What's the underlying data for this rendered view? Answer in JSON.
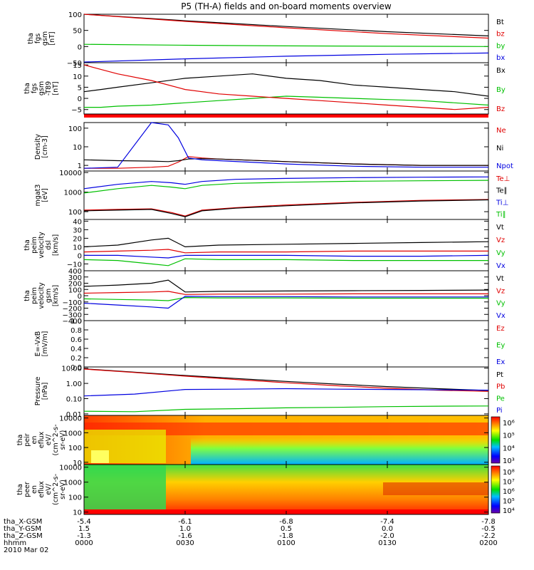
{
  "title": "P5 (TH-A) fields and on-board moments overview",
  "colors": {
    "black": "#000000",
    "red": "#e00000",
    "green": "#00c000",
    "blue": "#0000e0",
    "gray": "#d0d0d0"
  },
  "chart_data": [
    {
      "id": "fgs",
      "type": "line",
      "ylabel_lines": [
        "tha",
        "fgs",
        "gsm",
        "[nT]"
      ],
      "ylim": [
        -50,
        100
      ],
      "ticks": [
        {
          "v": 100,
          "label": "100"
        },
        {
          "v": 50,
          "label": "50"
        },
        {
          "v": 0,
          "label": "0"
        },
        {
          "v": -50,
          "label": "−50"
        }
      ],
      "x": [
        0,
        30,
        60,
        90,
        120
      ],
      "series": [
        {
          "name": "Bt",
          "color": "#000000",
          "values": [
            102,
            80,
            62,
            46,
            33
          ]
        },
        {
          "name": "bz",
          "color": "#e00000",
          "values": [
            102,
            78,
            58,
            40,
            26
          ]
        },
        {
          "name": "by",
          "color": "#00c000",
          "values": [
            7,
            4,
            2,
            1,
            0
          ]
        },
        {
          "name": "bx",
          "color": "#0000e0",
          "values": [
            -48,
            -38,
            -30,
            -24,
            -20
          ]
        }
      ]
    },
    {
      "id": "fgs_dsl",
      "type": "line",
      "ylabel_lines": [
        "tha",
        "fgs",
        "gsm",
        "-T89",
        "[nT]"
      ],
      "ylim": [
        -7,
        16
      ],
      "ticks": [
        {
          "v": 15,
          "label": "15"
        },
        {
          "v": 10,
          "label": "10"
        },
        {
          "v": 5,
          "label": "5"
        },
        {
          "v": 0,
          "label": "0"
        },
        {
          "v": -5,
          "label": "−5"
        }
      ],
      "x": [
        0,
        5,
        10,
        20,
        30,
        40,
        50,
        60,
        70,
        80,
        90,
        100,
        110,
        120
      ],
      "series": [
        {
          "name": "Bx",
          "color": "#000000",
          "values": [
            3,
            4,
            5,
            7,
            9,
            10,
            11,
            9,
            8,
            6,
            5,
            4,
            3,
            1
          ]
        },
        {
          "name": "By",
          "color": "#00c000",
          "values": [
            -4,
            -4,
            -3.5,
            -3,
            -2,
            -1,
            0,
            1,
            0.5,
            0,
            -0.5,
            -1,
            -2,
            -3
          ]
        },
        {
          "name": "Bz",
          "color": "#e00000",
          "values": [
            15,
            13,
            11,
            8,
            4,
            2,
            1,
            0,
            -1,
            -2,
            -3,
            -4,
            -5,
            -4
          ]
        }
      ]
    },
    {
      "id": "density",
      "type": "line",
      "yscale": "log",
      "ylabel_lines": [
        "Density",
        "[cm-3]"
      ],
      "ylim": [
        0.5,
        200
      ],
      "ticks": [
        {
          "v": 100,
          "label": "100"
        },
        {
          "v": 10,
          "label": "10"
        },
        {
          "v": 1,
          "label": "1"
        }
      ],
      "x": [
        0,
        10,
        20,
        25,
        28,
        31,
        35,
        40,
        60,
        80,
        100,
        120
      ],
      "series": [
        {
          "name": "Ne",
          "color": "#e00000",
          "values": [
            0.7,
            0.7,
            0.8,
            0.9,
            1.5,
            3,
            2.5,
            2.2,
            1.6,
            1.2,
            1.0,
            1.0
          ]
        },
        {
          "name": "Ni",
          "color": "#000000",
          "values": [
            2,
            1.8,
            1.7,
            1.6,
            1.8,
            2.2,
            2.3,
            2.2,
            1.6,
            1.2,
            1.0,
            1.0
          ]
        },
        {
          "name": "Npot",
          "color": "#0000e0",
          "values": [
            0.7,
            0.8,
            200,
            150,
            30,
            2.5,
            2.0,
            1.8,
            1.2,
            0.9,
            0.8,
            0.8
          ]
        }
      ]
    },
    {
      "id": "temp",
      "type": "line",
      "yscale": "log",
      "ylabel_lines": [
        "mgat3",
        "[eV]"
      ],
      "ylim": [
        40,
        12000
      ],
      "ticks": [
        {
          "v": 10000,
          "label": "10000"
        },
        {
          "v": 1000,
          "label": "1000"
        },
        {
          "v": 100,
          "label": "100"
        }
      ],
      "x": [
        0,
        10,
        20,
        26,
        30,
        35,
        45,
        60,
        80,
        100,
        120
      ],
      "series": [
        {
          "name": "Te⊥",
          "color": "#e00000",
          "values": [
            120,
            130,
            140,
            90,
            60,
            120,
            160,
            220,
            300,
            380,
            420
          ]
        },
        {
          "name": "Te∥",
          "color": "#000000",
          "values": [
            110,
            120,
            130,
            80,
            55,
            110,
            150,
            200,
            280,
            350,
            400
          ]
        },
        {
          "name": "Ti⊥",
          "color": "#0000e0",
          "values": [
            1500,
            2500,
            3500,
            3000,
            2500,
            3500,
            4500,
            5000,
            5500,
            5800,
            6000
          ]
        },
        {
          "name": "Ti∥",
          "color": "#00c000",
          "values": [
            900,
            1500,
            2200,
            1800,
            1500,
            2200,
            2800,
            3200,
            3600,
            3800,
            4000
          ]
        }
      ]
    },
    {
      "id": "vel_dsl",
      "type": "line",
      "ylabel_lines": [
        "tha",
        "peim",
        "velocity",
        "dsl",
        "[km/s]"
      ],
      "ylim": [
        -18,
        42
      ],
      "ticks": [
        {
          "v": 40,
          "label": "40"
        },
        {
          "v": 30,
          "label": "30"
        },
        {
          "v": 20,
          "label": "20"
        },
        {
          "v": 10,
          "label": "10"
        },
        {
          "v": 0,
          "label": "0"
        },
        {
          "v": -10,
          "label": "−10"
        }
      ],
      "x": [
        0,
        10,
        20,
        25,
        30,
        40,
        60,
        80,
        100,
        120
      ],
      "series": [
        {
          "name": "Vt",
          "color": "#000000",
          "values": [
            10,
            12,
            18,
            20,
            10,
            12,
            13,
            14,
            15,
            16
          ]
        },
        {
          "name": "Vz",
          "color": "#e00000",
          "values": [
            4,
            5,
            6,
            7,
            3,
            4,
            4,
            5,
            5,
            5
          ]
        },
        {
          "name": "Vy",
          "color": "#00c000",
          "values": [
            -5,
            -6,
            -10,
            -12,
            -4,
            -5,
            -5,
            -6,
            -6,
            -6
          ]
        },
        {
          "name": "Vx",
          "color": "#0000e0",
          "values": [
            0,
            0,
            -2,
            -3,
            0,
            0,
            0,
            -1,
            -1,
            0
          ]
        }
      ]
    },
    {
      "id": "vel_gsm",
      "type": "line",
      "ylabel_lines": [
        "tha",
        "peim",
        "velocity",
        "gsm",
        "[km/s]"
      ],
      "ylim": [
        -400,
        400
      ],
      "ticks": [
        {
          "v": 400,
          "label": "400"
        },
        {
          "v": 300,
          "label": "300"
        },
        {
          "v": 200,
          "label": "200"
        },
        {
          "v": 100,
          "label": "100"
        },
        {
          "v": 0,
          "label": "0"
        },
        {
          "v": -100,
          "label": "−100"
        },
        {
          "v": -200,
          "label": "−200"
        },
        {
          "v": -300,
          "label": "−300"
        },
        {
          "v": -400,
          "label": "−400"
        }
      ],
      "x": [
        0,
        10,
        20,
        25,
        30,
        40,
        60,
        80,
        100,
        120
      ],
      "series": [
        {
          "name": "Vt",
          "color": "#000000",
          "values": [
            150,
            170,
            200,
            250,
            60,
            70,
            75,
            80,
            85,
            90
          ]
        },
        {
          "name": "Vz",
          "color": "#e00000",
          "values": [
            40,
            50,
            60,
            70,
            20,
            25,
            25,
            30,
            30,
            30
          ]
        },
        {
          "name": "Vy",
          "color": "#00c000",
          "values": [
            -50,
            -60,
            -70,
            -80,
            -30,
            -35,
            -35,
            -40,
            -40,
            -40
          ]
        },
        {
          "name": "Vx",
          "color": "#0000e0",
          "values": [
            -120,
            -150,
            -180,
            -200,
            -10,
            -15,
            -15,
            -20,
            -20,
            -20
          ]
        }
      ]
    },
    {
      "id": "efield",
      "type": "line",
      "ylabel_lines": [
        "E=-VxB",
        "[mV/m]"
      ],
      "ylim": [
        0,
        1
      ],
      "ticks": [
        {
          "v": 1.0,
          "label": "1.0"
        },
        {
          "v": 0.8,
          "label": "0.8"
        },
        {
          "v": 0.6,
          "label": "0.6"
        },
        {
          "v": 0.4,
          "label": "0.4"
        },
        {
          "v": 0.2,
          "label": "0.2"
        },
        {
          "v": 0.0,
          "label": "0.0"
        }
      ],
      "x": [],
      "series": [
        {
          "name": "Ez",
          "color": "#e00000",
          "values": []
        },
        {
          "name": "Ey",
          "color": "#00c000",
          "values": []
        },
        {
          "name": "Ex",
          "color": "#0000e0",
          "values": []
        }
      ]
    },
    {
      "id": "pressure",
      "type": "line",
      "yscale": "log",
      "ylabel_lines": [
        "Pressure",
        "[nPa]"
      ],
      "ylim": [
        0.008,
        12
      ],
      "ticks": [
        {
          "v": 10,
          "label": "10.00"
        },
        {
          "v": 1,
          "label": "1.00"
        },
        {
          "v": 0.1,
          "label": "0.10"
        },
        {
          "v": 0.01,
          "label": "0.01"
        }
      ],
      "x": [
        0,
        15,
        30,
        45,
        60,
        75,
        90,
        105,
        120
      ],
      "series": [
        {
          "name": "Pt",
          "color": "#000000",
          "values": [
            9,
            5.5,
            3.3,
            2.1,
            1.35,
            0.9,
            0.62,
            0.45,
            0.34
          ]
        },
        {
          "name": "Pb",
          "color": "#e00000",
          "values": [
            8.7,
            5.2,
            3.0,
            1.8,
            1.1,
            0.7,
            0.48,
            0.36,
            0.3
          ]
        },
        {
          "name": "Pe",
          "color": "#00c000",
          "values": [
            0.015,
            0.014,
            0.02,
            0.022,
            0.025,
            0.027,
            0.03,
            0.032,
            0.033
          ]
        },
        {
          "name": "Pi",
          "color": "#0000e0",
          "values": [
            0.15,
            0.2,
            0.4,
            0.42,
            0.45,
            0.42,
            0.4,
            0.38,
            0.36
          ]
        }
      ]
    },
    {
      "id": "peir",
      "type": "heatmap",
      "yscale": "log",
      "ylabel_lines": [
        "tha",
        "peir",
        "en",
        "eflux",
        "eV/",
        "(cm^2-s-",
        "sr-eV)"
      ],
      "ylim": [
        7,
        15000
      ],
      "ticks": [
        {
          "v": 10000,
          "label": "10000"
        },
        {
          "v": 1000,
          "label": "1000"
        },
        {
          "v": 100,
          "label": "100"
        },
        {
          "v": 10,
          "label": "10"
        }
      ],
      "colorbar_labels": [
        "10⁶",
        "10⁵",
        "10⁴",
        "10³"
      ],
      "description_ranges": {
        "x": [
          0,
          120
        ],
        "y_log": [
          7,
          15000
        ]
      }
    },
    {
      "id": "peer",
      "type": "heatmap",
      "yscale": "log",
      "ylabel_lines": [
        "tha",
        "peer",
        "en",
        "eflux",
        "eV/",
        "(cm^2-s-",
        "sr-eV)"
      ],
      "ylim": [
        7,
        15000
      ],
      "ticks": [
        {
          "v": 10000,
          "label": "10000"
        },
        {
          "v": 1000,
          "label": "1000"
        },
        {
          "v": 100,
          "label": "100"
        },
        {
          "v": 10,
          "label": "10"
        }
      ],
      "colorbar_labels": [
        "10⁸",
        "10⁷",
        "10⁶",
        "10⁵",
        "10⁴"
      ]
    }
  ],
  "xaxis": {
    "rows": [
      {
        "label": "tha_X-GSM",
        "values": [
          "-5.4",
          "-6.1",
          "-6.8",
          "-7.4",
          "-7.8"
        ]
      },
      {
        "label": "tha_Y-GSM",
        "values": [
          "1.5",
          "1.0",
          "0.5",
          "0.0",
          "-0.5"
        ]
      },
      {
        "label": "tha_Z-GSM",
        "values": [
          "-1.3",
          "-1.6",
          "-1.8",
          "-2.0",
          "-2.2"
        ]
      },
      {
        "label": "hhmm",
        "values": [
          "0000",
          "0030",
          "0100",
          "0130",
          "0200"
        ]
      }
    ],
    "date": "2010 Mar 02",
    "minutes": [
      0,
      30,
      60,
      90,
      120
    ]
  }
}
